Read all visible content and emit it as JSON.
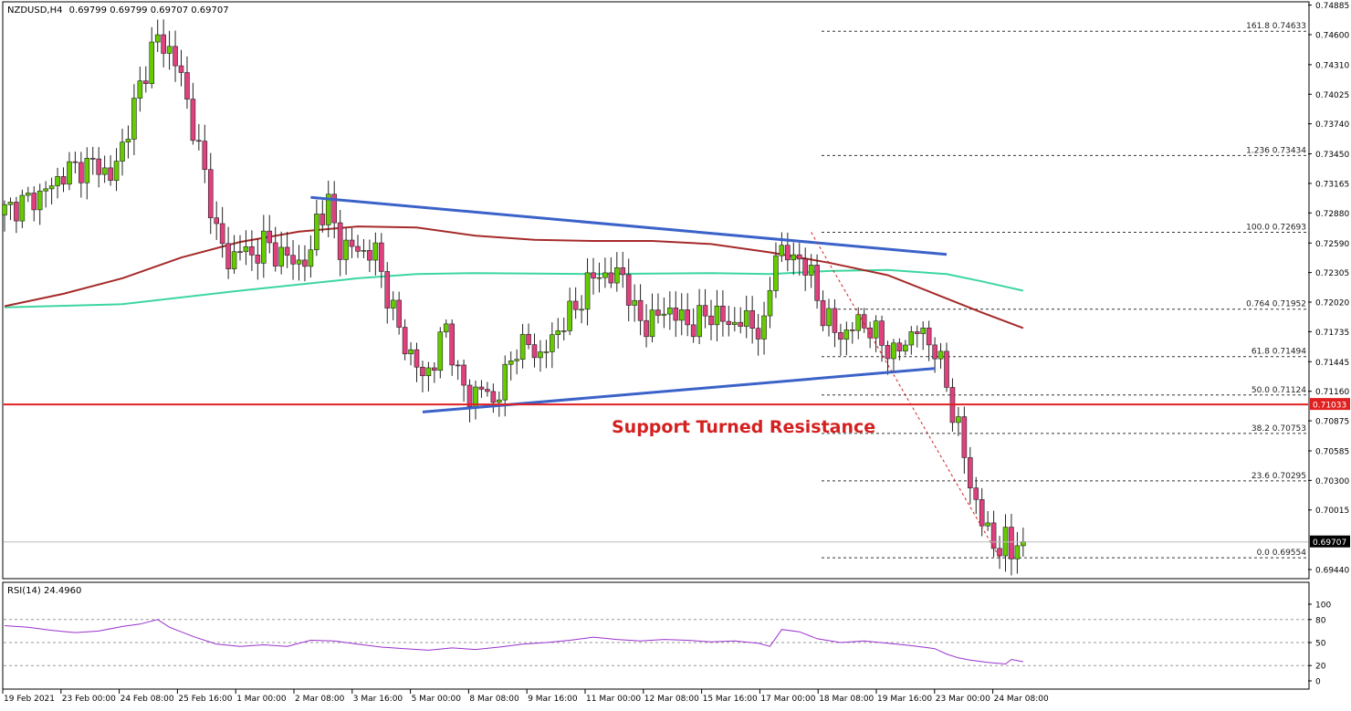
{
  "header": {
    "symbol": "NZDUSD,H4",
    "ohlc": "0.69799 0.69799 0.69707 0.69707"
  },
  "colors": {
    "bull": "#66cc00",
    "bear": "#e0407e",
    "ma_fast": "#a52a2a",
    "ma_slow": "#3cd6a0",
    "trendline": "#3b62c9",
    "support": "#e02020",
    "rsi": "#9932cc",
    "current_price_bg": "#ffffff"
  },
  "chart_data": [
    {
      "type": "candlestick",
      "title": "NZDUSD,H4",
      "ylim": [
        0.6937,
        0.7489
      ],
      "y_ticks": [
        "0.74885",
        "0.74600",
        "0.74310",
        "0.74025",
        "0.73740",
        "0.73450",
        "0.73165",
        "0.72880",
        "0.72590",
        "0.72305",
        "0.72020",
        "0.71735",
        "0.71445",
        "0.71160",
        "0.70875",
        "0.70585",
        "0.70300",
        "0.70015",
        "0.69440"
      ],
      "x_ticks": [
        "19 Feb 2021",
        "23 Feb 00:00",
        "24 Feb 08:00",
        "25 Feb 16:00",
        "1 Mar 00:00",
        "2 Mar 08:00",
        "3 Mar 16:00",
        "5 Mar 00:00",
        "8 Mar 08:00",
        "9 Mar 16:00",
        "11 Mar 00:00",
        "12 Mar 08:00",
        "15 Mar 16:00",
        "17 Mar 00:00",
        "18 Mar 08:00",
        "19 Mar 16:00",
        "23 Mar 00:00",
        "24 Mar 08:00"
      ],
      "close_path": [
        [
          0,
          0.729
        ],
        [
          6,
          0.7305
        ],
        [
          11,
          0.733
        ],
        [
          16,
          0.7335
        ],
        [
          18,
          0.732
        ],
        [
          21,
          0.737
        ],
        [
          23,
          0.741
        ],
        [
          25,
          0.7445
        ],
        [
          26,
          0.7455
        ],
        [
          28,
          0.7445
        ],
        [
          30,
          0.742
        ],
        [
          32,
          0.737
        ],
        [
          34,
          0.7325
        ],
        [
          36,
          0.727
        ],
        [
          38,
          0.724
        ],
        [
          40,
          0.7255
        ],
        [
          42,
          0.7245
        ],
        [
          44,
          0.726
        ],
        [
          46,
          0.725
        ],
        [
          48,
          0.7245
        ],
        [
          50,
          0.724
        ],
        [
          52,
          0.7245
        ],
        [
          53,
          0.7285
        ],
        [
          55,
          0.7295
        ],
        [
          57,
          0.7255
        ],
        [
          59,
          0.7255
        ],
        [
          61,
          0.725
        ],
        [
          63,
          0.725
        ],
        [
          65,
          0.721
        ],
        [
          67,
          0.7175
        ],
        [
          69,
          0.715
        ],
        [
          71,
          0.713
        ],
        [
          73,
          0.7145
        ],
        [
          75,
          0.718
        ],
        [
          77,
          0.713
        ],
        [
          79,
          0.711
        ],
        [
          81,
          0.712
        ],
        [
          83,
          0.7105
        ],
        [
          85,
          0.713
        ],
        [
          87,
          0.716
        ],
        [
          89,
          0.716
        ],
        [
          91,
          0.715
        ],
        [
          93,
          0.7165
        ],
        [
          95,
          0.7185
        ],
        [
          97,
          0.7195
        ],
        [
          99,
          0.722
        ],
        [
          101,
          0.723
        ],
        [
          103,
          0.7225
        ],
        [
          105,
          0.723
        ],
        [
          107,
          0.719
        ],
        [
          109,
          0.718
        ],
        [
          111,
          0.719
        ],
        [
          113,
          0.7195
        ],
        [
          115,
          0.7185
        ],
        [
          117,
          0.718
        ],
        [
          119,
          0.719
        ],
        [
          121,
          0.719
        ],
        [
          123,
          0.718
        ],
        [
          125,
          0.7185
        ],
        [
          127,
          0.718
        ],
        [
          129,
          0.7175
        ],
        [
          131,
          0.7255
        ],
        [
          133,
          0.7245
        ],
        [
          135,
          0.7245
        ],
        [
          137,
          0.7225
        ],
        [
          139,
          0.719
        ],
        [
          141,
          0.7175
        ],
        [
          143,
          0.717
        ],
        [
          145,
          0.7185
        ],
        [
          147,
          0.7175
        ],
        [
          149,
          0.7165
        ],
        [
          151,
          0.715
        ],
        [
          153,
          0.7165
        ],
        [
          155,
          0.7175
        ],
        [
          157,
          0.7165
        ],
        [
          158,
          0.7155
        ],
        [
          160,
          0.7125
        ],
        [
          161,
          0.7095
        ],
        [
          162,
          0.708
        ],
        [
          163,
          0.7055
        ],
        [
          164,
          0.7025
        ],
        [
          165,
          0.701
        ],
        [
          166,
          0.699
        ],
        [
          167,
          0.698
        ],
        [
          168,
          0.697
        ],
        [
          169,
          0.6965
        ],
        [
          170,
          0.697
        ],
        [
          171,
          0.696
        ],
        [
          172,
          0.6975
        ],
        [
          173,
          0.6971
        ]
      ],
      "ma_fast_path": [
        [
          0,
          0.7198
        ],
        [
          10,
          0.721
        ],
        [
          20,
          0.7225
        ],
        [
          30,
          0.7245
        ],
        [
          40,
          0.726
        ],
        [
          50,
          0.727
        ],
        [
          60,
          0.7275
        ],
        [
          70,
          0.7274
        ],
        [
          80,
          0.7266
        ],
        [
          90,
          0.7262
        ],
        [
          100,
          0.7261
        ],
        [
          110,
          0.7261
        ],
        [
          120,
          0.7258
        ],
        [
          130,
          0.725
        ],
        [
          140,
          0.724
        ],
        [
          150,
          0.7228
        ],
        [
          158,
          0.721
        ],
        [
          166,
          0.7192
        ],
        [
          173,
          0.7177
        ]
      ],
      "ma_slow_path": [
        [
          0,
          0.7197
        ],
        [
          20,
          0.72
        ],
        [
          40,
          0.7213
        ],
        [
          60,
          0.7225
        ],
        [
          70,
          0.7229
        ],
        [
          80,
          0.723
        ],
        [
          100,
          0.7229
        ],
        [
          120,
          0.723
        ],
        [
          130,
          0.7229
        ],
        [
          140,
          0.7232
        ],
        [
          150,
          0.7233
        ],
        [
          160,
          0.7229
        ],
        [
          166,
          0.7222
        ],
        [
          173,
          0.7213
        ]
      ],
      "support_level": 0.71033,
      "support_label": "0.71033",
      "current_price": 0.69707,
      "current_price_label": "0.69707",
      "annotation": "Support Turned Resistance",
      "upper_trendline": [
        [
          52,
          0.7303
        ],
        [
          160,
          0.7248
        ]
      ],
      "lower_trendline": [
        [
          71,
          0.7096
        ],
        [
          158,
          0.7138
        ]
      ],
      "fib_drop_line": [
        [
          137,
          0.72693
        ],
        [
          169,
          0.69554
        ]
      ],
      "fib_levels": [
        {
          "label": "161.8 0.74633",
          "value": 0.74633
        },
        {
          "label": "1.236 0.73434",
          "value": 0.73434
        },
        {
          "label": "100.0 0.72693",
          "value": 0.72693
        },
        {
          "label": "0.764 0.71952",
          "value": 0.71952
        },
        {
          "label": "61.8 0.71494",
          "value": 0.71494
        },
        {
          "label": "50.0 0.71124",
          "value": 0.71124
        },
        {
          "label": "38.2 0.70753",
          "value": 0.70753
        },
        {
          "label": "23.6 0.70295",
          "value": 0.70295
        },
        {
          "label": "0.0 0.69554",
          "value": 0.69554
        }
      ]
    },
    {
      "type": "line",
      "title": "RSI(14) 24.4960",
      "ylim": [
        0,
        100
      ],
      "y_ticks": [
        "100",
        "80",
        "50",
        "20",
        "0"
      ],
      "levels": [
        80,
        50,
        20
      ],
      "series": [
        {
          "name": "RSI(14)",
          "values": [
            [
              0,
              72
            ],
            [
              4,
              70
            ],
            [
              8,
              66
            ],
            [
              12,
              63
            ],
            [
              16,
              65
            ],
            [
              20,
              71
            ],
            [
              23,
              74
            ],
            [
              26,
              80
            ],
            [
              28,
              70
            ],
            [
              32,
              58
            ],
            [
              36,
              48
            ],
            [
              40,
              45
            ],
            [
              44,
              47
            ],
            [
              48,
              45
            ],
            [
              52,
              53
            ],
            [
              56,
              52
            ],
            [
              60,
              48
            ],
            [
              64,
              44
            ],
            [
              68,
              42
            ],
            [
              72,
              40
            ],
            [
              76,
              43
            ],
            [
              80,
              41
            ],
            [
              84,
              44
            ],
            [
              88,
              48
            ],
            [
              92,
              50
            ],
            [
              96,
              53
            ],
            [
              100,
              57
            ],
            [
              104,
              54
            ],
            [
              108,
              52
            ],
            [
              112,
              54
            ],
            [
              116,
              53
            ],
            [
              120,
              51
            ],
            [
              124,
              52
            ],
            [
              128,
              49
            ],
            [
              130,
              45
            ],
            [
              132,
              67
            ],
            [
              135,
              64
            ],
            [
              138,
              55
            ],
            [
              142,
              50
            ],
            [
              146,
              52
            ],
            [
              150,
              49
            ],
            [
              154,
              46
            ],
            [
              158,
              42
            ],
            [
              160,
              35
            ],
            [
              162,
              30
            ],
            [
              164,
              27
            ],
            [
              167,
              24
            ],
            [
              170,
              22
            ],
            [
              171,
              28
            ],
            [
              173,
              25
            ]
          ]
        }
      ]
    }
  ]
}
